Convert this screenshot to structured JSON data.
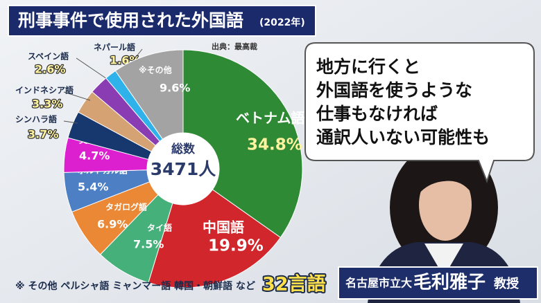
{
  "chart_data": {
    "type": "pie",
    "title": "刑事事件で使用された外国語",
    "title_note": "(2022年)",
    "source": "出典：最高裁",
    "center_label": "総数",
    "total": 3471,
    "total_label": "3471人",
    "categories": [
      "ベトナム語",
      "中国語",
      "タイ語",
      "タガログ語",
      "ポルトガル語",
      "英語",
      "シンハラ語",
      "インドネシア語",
      "スペイン語",
      "ネパール語",
      "※その他"
    ],
    "values": [
      34.8,
      19.9,
      7.5,
      6.9,
      5.4,
      4.7,
      3.7,
      3.3,
      2.6,
      1.6,
      9.6
    ],
    "value_labels": [
      "34.8%",
      "19.9%",
      "7.5%",
      "6.9%",
      "5.4%",
      "4.7%",
      "3.7%",
      "3.3%",
      "2.6%",
      "1.6%",
      "9.6%"
    ],
    "colors": [
      "#2f8a35",
      "#d1262b",
      "#46b07a",
      "#ea8836",
      "#4d7fc4",
      "#dc1fcf",
      "#17386f",
      "#d5a373",
      "#8a3db3",
      "#2fb1ea",
      "#a3a3a3"
    ],
    "note": "※ その他 ペルシャ語 ミャンマー語 韓国・朝鮮語 など",
    "language_count": 32,
    "language_count_label": "32言語"
  },
  "speech_bubble": {
    "lines": [
      "地方に行くと",
      "外国語を使うような",
      "仕事もなければ",
      "通訳人いない可能性も"
    ]
  },
  "name_plate": {
    "affiliation": "名古屋市立大",
    "name": "毛利雅子",
    "title": "教授"
  }
}
